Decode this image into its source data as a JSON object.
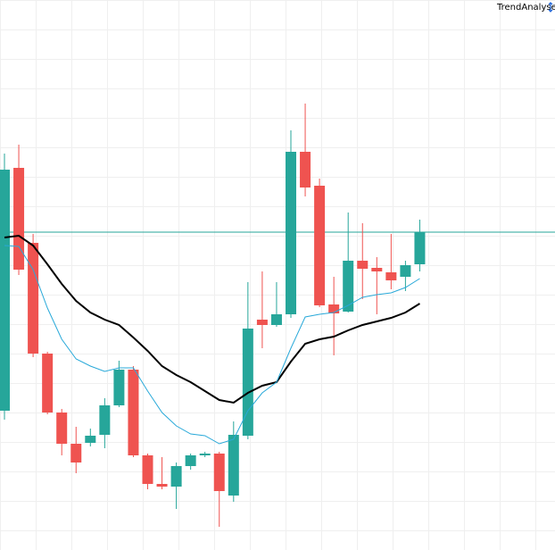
{
  "chart_data": {
    "type": "candlestick",
    "title": "TrendAnalyse",
    "ylim": [
      0,
      616
    ],
    "up_color": "#26a69a",
    "down_color": "#ef5350",
    "open": [
      156,
      428,
      344,
      220,
      154,
      119,
      120,
      129,
      162,
      202,
      106,
      74,
      71,
      94,
      106,
      108,
      61,
      128,
      258,
      252,
      264,
      446,
      408,
      275,
      267,
      324,
      316,
      311,
      306,
      320
    ],
    "high": [
      444,
      454,
      354,
      222,
      158,
      138,
      136,
      170,
      212,
      206,
      108,
      104,
      98,
      108,
      110,
      110,
      144,
      300,
      312,
      300,
      470,
      500,
      416,
      306,
      378,
      366,
      328,
      354,
      324,
      370
    ],
    "low": [
      146,
      308,
      216,
      152,
      106,
      86,
      116,
      114,
      160,
      104,
      68,
      68,
      46,
      90,
      104,
      26,
      54,
      124,
      226,
      250,
      260,
      396,
      272,
      218,
      266,
      281,
      264,
      292,
      290,
      312
    ],
    "close": [
      426,
      314,
      220,
      154,
      119,
      98,
      128,
      162,
      202,
      106,
      74,
      71,
      94,
      106,
      108,
      66,
      129,
      248,
      252,
      264,
      446,
      406,
      274,
      265,
      324,
      315,
      312,
      302,
      319,
      356
    ],
    "series": [
      {
        "color": "#000000",
        "width": 2,
        "values": [
          350,
          352,
          341,
          320,
          298,
          279,
          266,
          258,
          252,
          238,
          223,
          206,
          196,
          188,
          178,
          168,
          165,
          176,
          184,
          188,
          211,
          231,
          236,
          239,
          246,
          252,
          256,
          260,
          266,
          276
        ]
      },
      {
        "color": "#29a9d9",
        "width": 1,
        "values": [
          341,
          340,
          314,
          271,
          236,
          214,
          206,
          200,
          204,
          204,
          178,
          154,
          139,
          130,
          128,
          119,
          124,
          156,
          176,
          188,
          226,
          261,
          264,
          266,
          274,
          283,
          286,
          288,
          294,
          304
        ]
      }
    ],
    "hline": {
      "value": 356,
      "color": "#26a69a"
    }
  }
}
